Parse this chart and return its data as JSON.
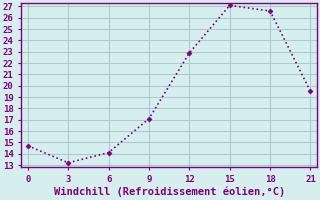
{
  "x": [
    0,
    3,
    6,
    9,
    12,
    15,
    18,
    21
  ],
  "y": [
    14.7,
    13.2,
    14.1,
    17.1,
    22.9,
    27.1,
    26.6,
    19.5
  ],
  "xlabel": "Windchill (Refroidissement éolien,°C)",
  "line_color": "#800080",
  "marker": "D",
  "marker_size": 2.5,
  "line_style": ":",
  "line_width": 1.2,
  "background_color": "#d6eeee",
  "grid_color": "#aacccc",
  "xlim": [
    -0.5,
    21.5
  ],
  "ylim": [
    12.8,
    27.3
  ],
  "xticks": [
    0,
    3,
    6,
    9,
    12,
    15,
    18,
    21
  ],
  "yticks": [
    13,
    14,
    15,
    16,
    17,
    18,
    19,
    20,
    21,
    22,
    23,
    24,
    25,
    26,
    27
  ],
  "tick_color": "#800080",
  "label_color": "#800080",
  "spine_color": "#800080",
  "xlabel_fontsize": 7.5,
  "tick_fontsize": 6.5
}
